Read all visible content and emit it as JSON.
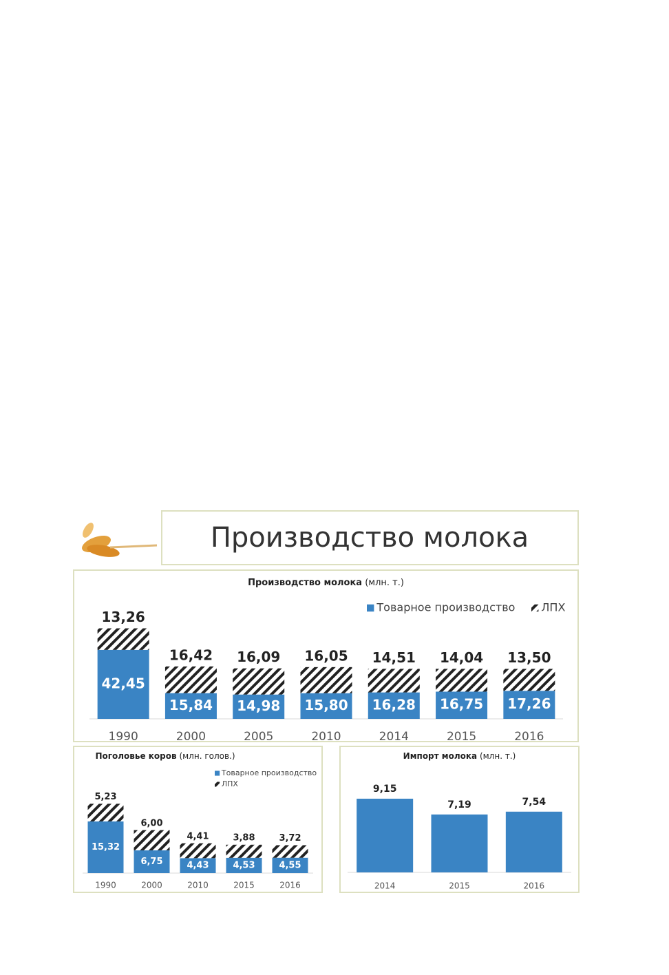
{
  "page_title": "Производство молока",
  "chart_data": [
    {
      "type": "stacked_bar",
      "title": "Производство молока",
      "unit": "(млн. т.)",
      "categories": [
        "1990",
        "2000",
        "2005",
        "2010",
        "2014",
        "2015",
        "2016"
      ],
      "legend": "top-right",
      "series": [
        {
          "name": "Товарное производство",
          "color": "#3a84c4",
          "values": [
            42.45,
            15.84,
            14.98,
            15.8,
            16.28,
            16.75,
            17.26
          ],
          "value_labels": [
            "42,45",
            "15,84",
            "14,98",
            "15,80",
            "16,28",
            "16,75",
            "17,26"
          ]
        },
        {
          "name": "ЛПХ",
          "color": "#222222",
          "pattern": "hatch",
          "values": [
            13.26,
            16.42,
            16.09,
            16.05,
            14.51,
            14.04,
            13.5
          ],
          "value_labels": [
            "13,26",
            "16,42",
            "16,09",
            "16,05",
            "14,51",
            "14,04",
            "13,50"
          ]
        }
      ]
    },
    {
      "type": "stacked_bar",
      "title": "Поголовье коров",
      "unit": "(млн. голов.)",
      "categories": [
        "1990",
        "2000",
        "2010",
        "2015",
        "2016"
      ],
      "legend": "top-right",
      "series": [
        {
          "name": "Товарное производство",
          "color": "#3a84c4",
          "values": [
            15.32,
            6.75,
            4.43,
            4.53,
            4.55
          ],
          "value_labels": [
            "15,32",
            "6,75",
            "4,43",
            "4,53",
            "4,55"
          ]
        },
        {
          "name": "ЛПХ",
          "color": "#222222",
          "pattern": "hatch",
          "values": [
            5.23,
            6.0,
            4.41,
            3.88,
            3.72
          ],
          "value_labels": [
            "5,23",
            "6,00",
            "4,41",
            "3,88",
            "3,72"
          ]
        }
      ]
    },
    {
      "type": "bar",
      "title": "Импорт молока",
      "unit": "(млн. т.)",
      "categories": [
        "2014",
        "2015",
        "2016"
      ],
      "color": "#3a84c4",
      "values": [
        9.15,
        7.19,
        7.54
      ],
      "value_labels": [
        "9,15",
        "7,19",
        "7,54"
      ]
    }
  ]
}
